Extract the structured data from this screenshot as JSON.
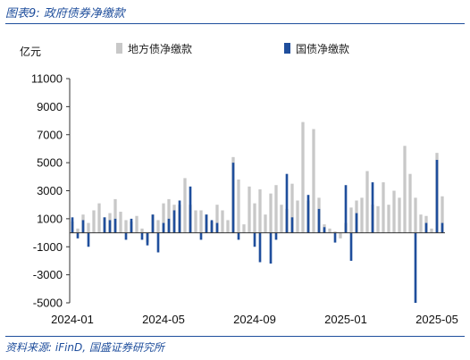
{
  "caption": "图表9:  政府债券净缴款",
  "source": "资料来源:  iFinD,  国盛证券研究所",
  "chart_data": {
    "type": "bar",
    "ylabel": "亿元",
    "ylim": [
      -5000,
      11000
    ],
    "yticks": [
      11000,
      9000,
      7000,
      5000,
      3000,
      1000,
      -1000,
      -3000,
      -5000
    ],
    "xtick_labels": [
      "2024-01",
      "2024-05",
      "2024-09",
      "2025-01",
      "2025-05"
    ],
    "xtick_indices": [
      0,
      17,
      34,
      51,
      68
    ],
    "colors": {
      "地方债净缴款": "#c8c8c8",
      "国债净缴款": "#1f4e9c",
      "axis": "#333333"
    },
    "legend_position": "top",
    "series": [
      {
        "name": "地方债净缴款",
        "values": [
          800,
          300,
          1300,
          700,
          1600,
          2100,
          1100,
          1400,
          2400,
          1500,
          900,
          800,
          1200,
          300,
          -700,
          1300,
          900,
          2100,
          2400,
          2000,
          2000,
          3900,
          2000,
          1600,
          1600,
          1300,
          800,
          2000,
          1600,
          900,
          5400,
          3800,
          600,
          3300,
          2100,
          3100,
          1300,
          2800,
          3400,
          2000,
          1700,
          3500,
          2300,
          7900,
          2300,
          7400,
          2500,
          600,
          300,
          100,
          -400,
          700,
          1800,
          2300,
          2500,
          4400,
          2000,
          1900,
          3600,
          2000,
          3000,
          2500,
          6200,
          4200,
          2500,
          1300,
          1200,
          300,
          5700,
          2600
        ]
      },
      {
        "name": "国债净缴款",
        "values": [
          1100,
          -400,
          900,
          -1000,
          0,
          0,
          1100,
          900,
          1000,
          0,
          -500,
          1000,
          0,
          -500,
          -900,
          1300,
          -1400,
          700,
          1000,
          1600,
          2300,
          0,
          3300,
          0,
          -500,
          1300,
          900,
          700,
          0,
          0,
          5000,
          -500,
          0,
          0,
          -1000,
          -2100,
          0,
          -2200,
          -500,
          0,
          4200,
          1100,
          0,
          0,
          2700,
          0,
          1700,
          400,
          0,
          -700,
          0,
          3400,
          -2000,
          1400,
          0,
          0,
          3600,
          0,
          0,
          0,
          0,
          0,
          0,
          0,
          -5000,
          0,
          700,
          0,
          5200,
          700
        ]
      }
    ]
  }
}
